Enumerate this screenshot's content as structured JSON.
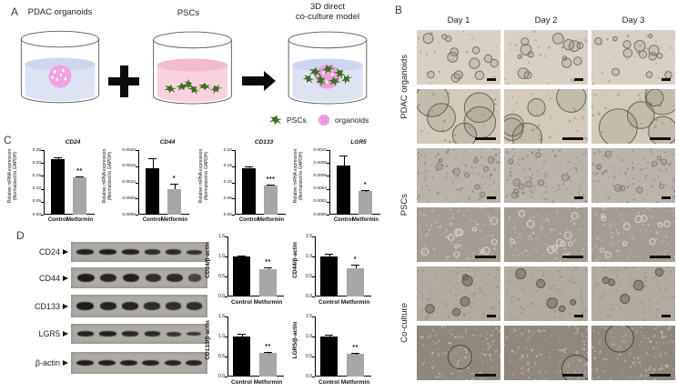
{
  "colors": {
    "bar_control": "#000000",
    "bar_metformin": "#a6a6a6",
    "organoid_pink": "#f2a2e1",
    "psc_green": "#3c6f1d",
    "liquid_blue": "#dee3f4",
    "liquid_blue_surface": "#cdd6ee",
    "liquid_pink": "#f8d2de",
    "liquid_pink_surface": "#f2bccd"
  },
  "panel_a": {
    "label": "A",
    "dish1_title": "PDAC organoids",
    "dish2_title": "PSCs",
    "dish3_title_1": "3D direct",
    "dish3_title_2": "co-culture model",
    "legend": {
      "pscs": "PSCs",
      "organoids": "organoids"
    }
  },
  "panel_b": {
    "label": "B",
    "columns": [
      "Day 1",
      "Day 2",
      "Day 3"
    ],
    "row_groups": [
      "PDAC organoids",
      "PSCs",
      "Co-culture"
    ]
  },
  "panel_c": {
    "label": "C"
  },
  "panel_d": {
    "label": "D",
    "blots": [
      {
        "label": "CD24",
        "band_height": 5,
        "lanes": [
          0.95,
          1,
          0.95,
          0.75,
          0.8,
          0.7
        ]
      },
      {
        "label": "CD44",
        "band_height": 9,
        "lanes": [
          1,
          0.85,
          0.95,
          0.75,
          0.8,
          0.45
        ]
      },
      {
        "label": "CD133",
        "band_height": 8,
        "lanes": [
          1,
          0.9,
          0.9,
          0.8,
          0.75,
          0.75
        ]
      },
      {
        "label": "LGR5",
        "band_height": 5,
        "lanes": [
          0.9,
          0.95,
          0.85,
          0.8,
          0.7,
          0.65
        ]
      },
      {
        "label": "β-actin",
        "band_height": 6,
        "lanes": [
          1,
          0.95,
          0.95,
          0.95,
          0.9,
          0.9
        ]
      }
    ]
  },
  "chart_data": [
    {
      "id": "mrna_cd24",
      "type": "bar",
      "panel": "C",
      "kind": "mrna",
      "title": "CD24",
      "ylabel_lines": [
        "Relative mRNA expression",
        "(Normalized to GAPDH)"
      ],
      "categories": [
        "Control",
        "Metformin"
      ],
      "values": [
        0.215,
        0.145
      ],
      "errors": [
        0.008,
        0.003
      ],
      "significance": "**",
      "ylim": [
        0,
        0.25
      ],
      "yticks": [
        "0.00",
        "0.05",
        "0.10",
        "0.15",
        "0.20",
        "0.25"
      ]
    },
    {
      "id": "mrna_cd44",
      "type": "bar",
      "panel": "C",
      "kind": "mrna",
      "title": "CD44",
      "ylabel_lines": [
        "Relative mRNA expression",
        "(Normalized to GAPDH)"
      ],
      "categories": [
        "Control",
        "Metformin"
      ],
      "values": [
        0.00145,
        0.0008
      ],
      "errors": [
        0.0003,
        0.00015
      ],
      "significance": "*",
      "ylim": [
        0,
        0.002
      ],
      "yticks": [
        "0.0000",
        "0.0005",
        "0.0010",
        "0.0015",
        "0.0020"
      ]
    },
    {
      "id": "mrna_cd133",
      "type": "bar",
      "panel": "C",
      "kind": "mrna",
      "title": "CD133",
      "ylabel_lines": [
        "Relative mRNA expression",
        "(Normalized to GAPDH)"
      ],
      "categories": [
        "Control",
        "Metformin"
      ],
      "values": [
        0.145,
        0.09
      ],
      "errors": [
        0.004,
        0.003
      ],
      "significance": "***",
      "ylim": [
        0,
        0.2
      ],
      "yticks": [
        "0.00",
        "0.05",
        "0.10",
        "0.15",
        "0.20"
      ]
    },
    {
      "id": "mrna_lgr5",
      "type": "bar",
      "panel": "C",
      "kind": "mrna",
      "title": "LGR5",
      "ylabel_lines": [
        "Relative mRNA expression",
        "(Normalized to GAPDH)"
      ],
      "categories": [
        "Control",
        "Metformin"
      ],
      "values": [
        0.00076,
        0.00036
      ],
      "errors": [
        0.00015,
        2e-05
      ],
      "significance": "*",
      "ylim": [
        0,
        0.001
      ],
      "yticks": [
        "0.0000",
        "0.0002",
        "0.0004",
        "0.0006",
        "0.0008",
        "0.0010"
      ]
    },
    {
      "id": "protein_cd24",
      "type": "bar",
      "panel": "D",
      "kind": "protein",
      "ylabel_lines": [
        "CD24/β-actin"
      ],
      "categories": [
        "Control",
        "Metformin"
      ],
      "values": [
        1.0,
        0.68
      ],
      "errors": [
        0.03,
        0.04
      ],
      "significance": "**",
      "ylim": [
        0,
        1.5
      ],
      "yticks": [
        "0.0",
        "0.5",
        "1.0",
        "1.5"
      ]
    },
    {
      "id": "protein_cd44",
      "type": "bar",
      "panel": "D",
      "kind": "protein",
      "ylabel_lines": [
        "CD44/β-actin"
      ],
      "categories": [
        "Control",
        "Metformin"
      ],
      "values": [
        1.0,
        0.71
      ],
      "errors": [
        0.07,
        0.09
      ],
      "significance": "*",
      "ylim": [
        0,
        1.5
      ],
      "yticks": [
        "0.0",
        "0.5",
        "1.0",
        "1.5"
      ]
    },
    {
      "id": "protein_cd133",
      "type": "bar",
      "panel": "D",
      "kind": "protein",
      "ylabel_lines": [
        "CD133/β-actin"
      ],
      "categories": [
        "Control",
        "Metformin"
      ],
      "values": [
        1.0,
        0.58
      ],
      "errors": [
        0.07,
        0.04
      ],
      "significance": "**",
      "ylim": [
        0,
        1.5
      ],
      "yticks": [
        "0.0",
        "0.5",
        "1.0",
        "1.5"
      ]
    },
    {
      "id": "protein_lgr5",
      "type": "bar",
      "panel": "D",
      "kind": "protein",
      "ylabel_lines": [
        "LGR5/β-actin"
      ],
      "categories": [
        "Control",
        "Metformin"
      ],
      "values": [
        1.0,
        0.57
      ],
      "errors": [
        0.04,
        0.03
      ],
      "significance": "**",
      "ylim": [
        0,
        1.5
      ],
      "yticks": [
        "0.0",
        "0.5",
        "1.0",
        "1.5"
      ]
    }
  ]
}
